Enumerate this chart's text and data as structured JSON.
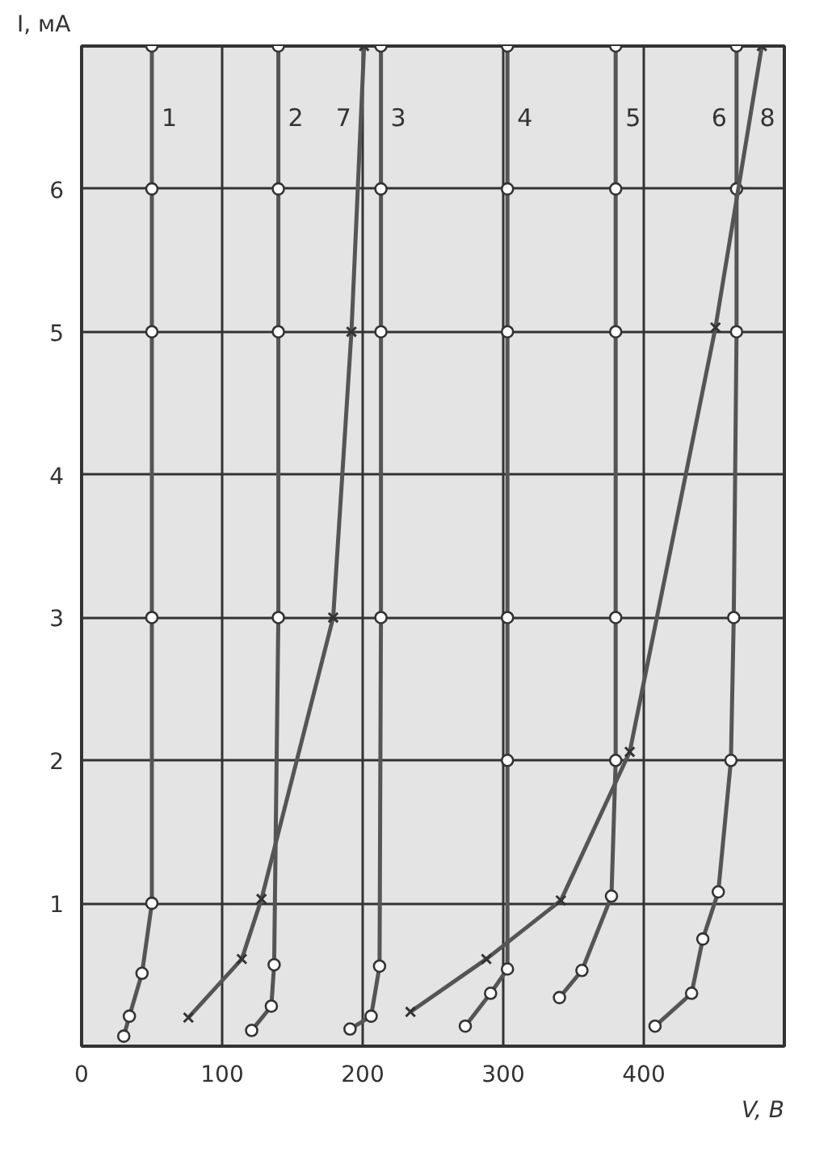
{
  "chart_data": {
    "type": "line",
    "xlabel": "V, В",
    "ylabel": "I, мА",
    "xlim": [
      0,
      500
    ],
    "ylim": [
      0,
      7
    ],
    "xticks": [
      0,
      100,
      200,
      300,
      400
    ],
    "yticks": [
      1,
      2,
      3,
      4,
      5,
      6
    ],
    "grid": true,
    "line_style": "solid",
    "series": [
      {
        "name": "1",
        "color": "#555555",
        "marker": "circle",
        "x": [
          30,
          34,
          43,
          50,
          50,
          50,
          50,
          50
        ],
        "values": [
          0.07,
          0.21,
          0.51,
          1,
          3,
          5,
          6,
          7
        ]
      },
      {
        "name": "2",
        "color": "#555555",
        "marker": "circle",
        "x": [
          121,
          135,
          137,
          140,
          140,
          140,
          140
        ],
        "values": [
          0.11,
          0.28,
          0.57,
          3,
          5,
          6,
          7
        ]
      },
      {
        "name": "3",
        "color": "#555555",
        "marker": "circle",
        "x": [
          191,
          206,
          212,
          213,
          213,
          213,
          213
        ],
        "values": [
          0.12,
          0.21,
          0.56,
          3,
          5,
          6,
          7
        ]
      },
      {
        "name": "4",
        "color": "#555555",
        "marker": "circle",
        "x": [
          273,
          291,
          303,
          303,
          303,
          303,
          303,
          303
        ],
        "values": [
          0.14,
          0.37,
          0.54,
          2,
          3,
          5,
          6,
          7
        ]
      },
      {
        "name": "5",
        "color": "#555555",
        "marker": "circle",
        "x": [
          340,
          356,
          377,
          380,
          380,
          380,
          380,
          380
        ],
        "values": [
          0.34,
          0.53,
          1.05,
          2,
          3,
          5,
          6,
          7
        ]
      },
      {
        "name": "6",
        "color": "#555555",
        "marker": "circle",
        "x": [
          408,
          434,
          442,
          453,
          462,
          464,
          466,
          466,
          466
        ],
        "values": [
          0.14,
          0.37,
          0.75,
          1.08,
          2,
          3,
          5,
          6,
          7
        ]
      },
      {
        "name": "7",
        "color": "#555555",
        "marker": "cross",
        "x": [
          76,
          114,
          128,
          179,
          192,
          201
        ],
        "values": [
          0.2,
          0.61,
          1.03,
          3,
          5,
          7
        ]
      },
      {
        "name": "8",
        "color": "#555555",
        "marker": "cross",
        "x": [
          234,
          288,
          341,
          390,
          451,
          484
        ],
        "values": [
          0.24,
          0.61,
          1.02,
          2.06,
          5.03,
          7
        ]
      }
    ]
  }
}
